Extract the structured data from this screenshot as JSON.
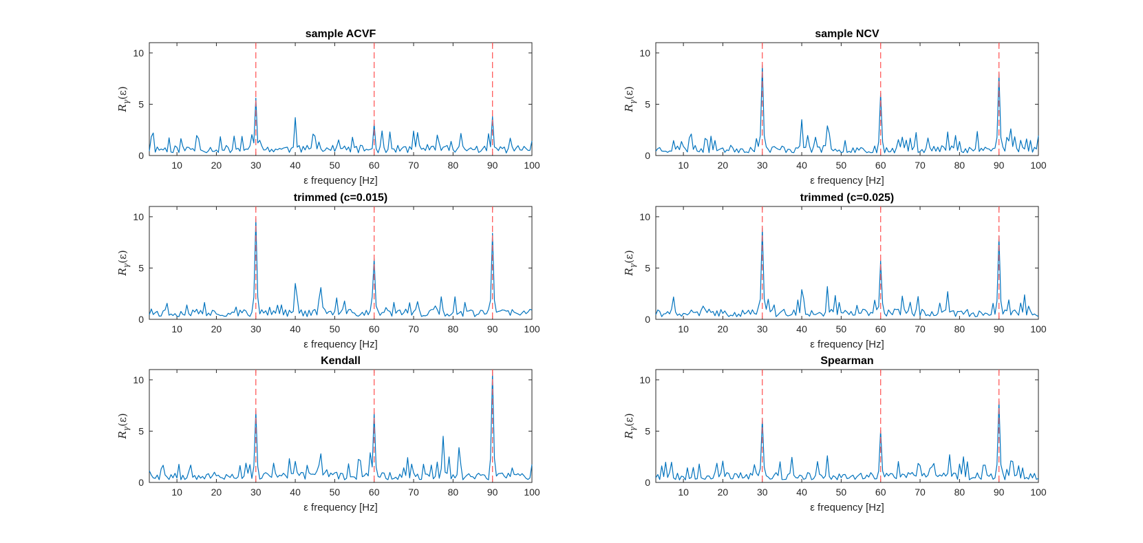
{
  "chart_data": [
    {
      "type": "line",
      "title": "sample ACVF",
      "xlabel": "ε frequency [Hz]",
      "ylabel": "R_γ(ε)",
      "ylabel_parts": {
        "base": "R",
        "sub": "γ",
        "arg": "(ε)"
      },
      "xlim": [
        3,
        100
      ],
      "ylim": [
        0,
        11
      ],
      "xticks": [
        10,
        20,
        30,
        40,
        50,
        60,
        70,
        80,
        90,
        100
      ],
      "yticks": [
        0,
        5,
        10
      ],
      "markers": [
        30,
        60,
        90
      ],
      "peaks": [
        [
          30,
          5.6
        ],
        [
          40,
          3.7
        ],
        [
          60,
          3.1
        ],
        [
          90,
          3.8
        ],
        [
          24.5,
          1.9
        ],
        [
          64,
          2.3
        ],
        [
          76,
          2.0
        ]
      ],
      "seed": 11
    },
    {
      "type": "line",
      "title": "sample NCV",
      "xlabel": "ε frequency [Hz]",
      "ylabel": "R_γ(ε)",
      "ylabel_parts": {
        "base": "R",
        "sub": "γ",
        "arg": "(ε)"
      },
      "xlim": [
        3,
        100
      ],
      "ylim": [
        0,
        11
      ],
      "xticks": [
        10,
        20,
        30,
        40,
        50,
        60,
        70,
        80,
        90,
        100
      ],
      "yticks": [
        0,
        5,
        10
      ],
      "markers": [
        30,
        60,
        90
      ],
      "peaks": [
        [
          30,
          8.8
        ],
        [
          60,
          6.1
        ],
        [
          90,
          8.0
        ],
        [
          40,
          3.5
        ],
        [
          46.5,
          2.9
        ],
        [
          93,
          2.6
        ],
        [
          77,
          2.3
        ]
      ],
      "seed": 23
    },
    {
      "type": "line",
      "title": "trimmed (c=0.015)",
      "xlabel": "ε frequency [Hz]",
      "ylabel": "R_γ(ε)",
      "ylabel_parts": {
        "base": "R",
        "sub": "γ",
        "arg": "(ε)"
      },
      "xlim": [
        3,
        100
      ],
      "ylim": [
        0,
        11
      ],
      "xticks": [
        10,
        20,
        30,
        40,
        50,
        60,
        70,
        80,
        90,
        100
      ],
      "yticks": [
        0,
        5,
        10
      ],
      "markers": [
        30,
        60,
        90
      ],
      "peaks": [
        [
          30,
          9.8
        ],
        [
          60,
          5.9
        ],
        [
          90,
          8.4
        ],
        [
          40,
          3.5
        ],
        [
          46.5,
          3.1
        ],
        [
          80.5,
          2.2
        ],
        [
          77,
          2.2
        ]
      ],
      "seed": 37
    },
    {
      "type": "line",
      "title": "trimmed (c=0.025)",
      "xlabel": "ε frequency [Hz]",
      "ylabel": "R_γ(ε)",
      "ylabel_parts": {
        "base": "R",
        "sub": "γ",
        "arg": "(ε)"
      },
      "xlim": [
        3,
        100
      ],
      "ylim": [
        0,
        11
      ],
      "xticks": [
        10,
        20,
        30,
        40,
        50,
        60,
        70,
        80,
        90,
        100
      ],
      "yticks": [
        0,
        5,
        10
      ],
      "markers": [
        30,
        60,
        90
      ],
      "peaks": [
        [
          30,
          8.9
        ],
        [
          60,
          5.7
        ],
        [
          90,
          8.1
        ],
        [
          46.5,
          3.2
        ],
        [
          40,
          2.9
        ],
        [
          77,
          2.7
        ],
        [
          92.5,
          1.9
        ]
      ],
      "seed": 41
    },
    {
      "type": "line",
      "title": "Kendall",
      "xlabel": "ε frequency [Hz]",
      "ylabel": "R_γ(ε)",
      "ylabel_parts": {
        "base": "R",
        "sub": "γ",
        "arg": "(ε)"
      },
      "xlim": [
        3,
        100
      ],
      "ylim": [
        0,
        11
      ],
      "xticks": [
        10,
        20,
        30,
        40,
        50,
        60,
        70,
        80,
        90,
        100
      ],
      "yticks": [
        0,
        5,
        10
      ],
      "markers": [
        30,
        60,
        90
      ],
      "peaks": [
        [
          30,
          7.0
        ],
        [
          60,
          6.8
        ],
        [
          90,
          10.7
        ],
        [
          77.5,
          4.5
        ],
        [
          81.5,
          3.4
        ],
        [
          46.5,
          2.8
        ],
        [
          59,
          2.9
        ]
      ],
      "seed": 53
    },
    {
      "type": "line",
      "title": "Spearman",
      "xlabel": "ε frequency [Hz]",
      "ylabel": "R_γ(ε)",
      "ylabel_parts": {
        "base": "R",
        "sub": "γ",
        "arg": "(ε)"
      },
      "xlim": [
        3,
        100
      ],
      "ylim": [
        0,
        11
      ],
      "xticks": [
        10,
        20,
        30,
        40,
        50,
        60,
        70,
        80,
        90,
        100
      ],
      "yticks": [
        0,
        5,
        10
      ],
      "markers": [
        30,
        60,
        90
      ],
      "peaks": [
        [
          30,
          6.2
        ],
        [
          60,
          5.1
        ],
        [
          90,
          7.9
        ],
        [
          46.5,
          2.6
        ],
        [
          77.5,
          2.7
        ],
        [
          81,
          2.5
        ],
        [
          93,
          2.1
        ]
      ],
      "seed": 67
    }
  ]
}
